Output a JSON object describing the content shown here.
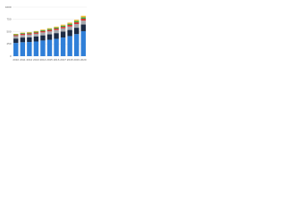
{
  "chart_data": {
    "type": "stacked_bar",
    "categories": [
      "2010",
      "2011",
      "2012",
      "2013",
      "2014",
      "2015",
      "2016",
      "2017",
      "2018",
      "2019",
      "2020"
    ],
    "series": [
      {
        "color": "#2f7fd8",
        "values": [
          270,
          285,
          290,
          300,
          320,
          335,
          355,
          380,
          410,
          450,
          510
        ]
      },
      {
        "color": "#1c2b44",
        "values": [
          90,
          95,
          95,
          100,
          105,
          110,
          115,
          120,
          125,
          130,
          135
        ]
      },
      {
        "color": "#a5a8ad",
        "values": [
          50,
          52,
          55,
          57,
          60,
          62,
          65,
          68,
          70,
          75,
          80
        ]
      },
      {
        "color": "#d8322f",
        "values": [
          20,
          22,
          22,
          24,
          25,
          27,
          28,
          30,
          32,
          35,
          38
        ]
      },
      {
        "color": "#3da543",
        "values": [
          15,
          16,
          17,
          18,
          19,
          20,
          22,
          24,
          25,
          27,
          30
        ]
      },
      {
        "color": "#f2b733",
        "values": [
          10,
          11,
          12,
          13,
          14,
          16,
          18,
          20,
          22,
          25,
          30
        ]
      }
    ],
    "ylim": [
      0,
      1000
    ],
    "yticks": [
      0,
      250,
      500,
      750,
      1000
    ],
    "grid": true
  }
}
